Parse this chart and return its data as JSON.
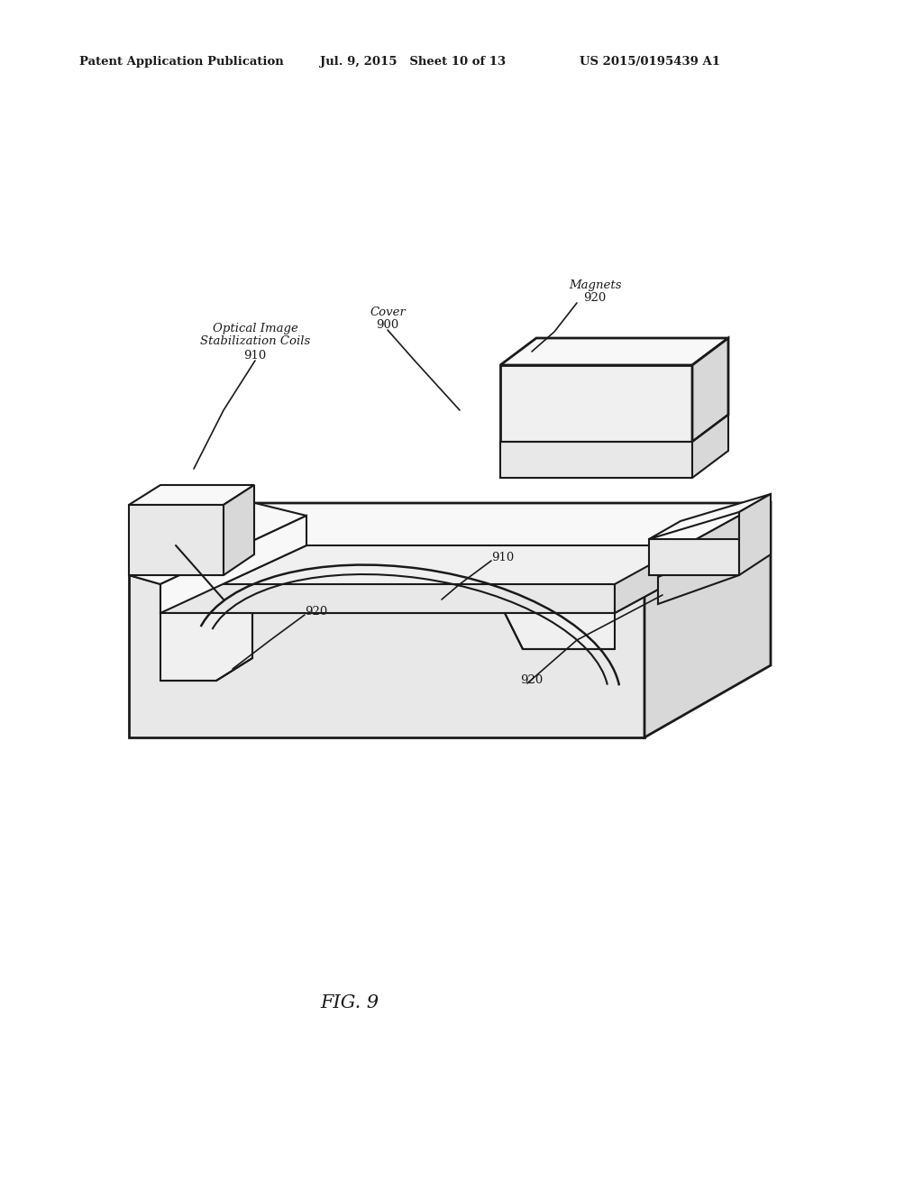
{
  "background_color": "#ffffff",
  "line_color": "#1a1a1a",
  "header_left": "Patent Application Publication",
  "header_center": "Jul. 9, 2015   Sheet 10 of 13",
  "header_right": "US 2015/0195439 A1",
  "fig_label": "FIG. 9",
  "lw": 1.5,
  "lw_thick": 2.0,
  "face_outer": "#f8f8f8",
  "face_side": "#e8e8e8",
  "face_dark": "#d8d8d8",
  "face_floor": "#f0f0f0"
}
